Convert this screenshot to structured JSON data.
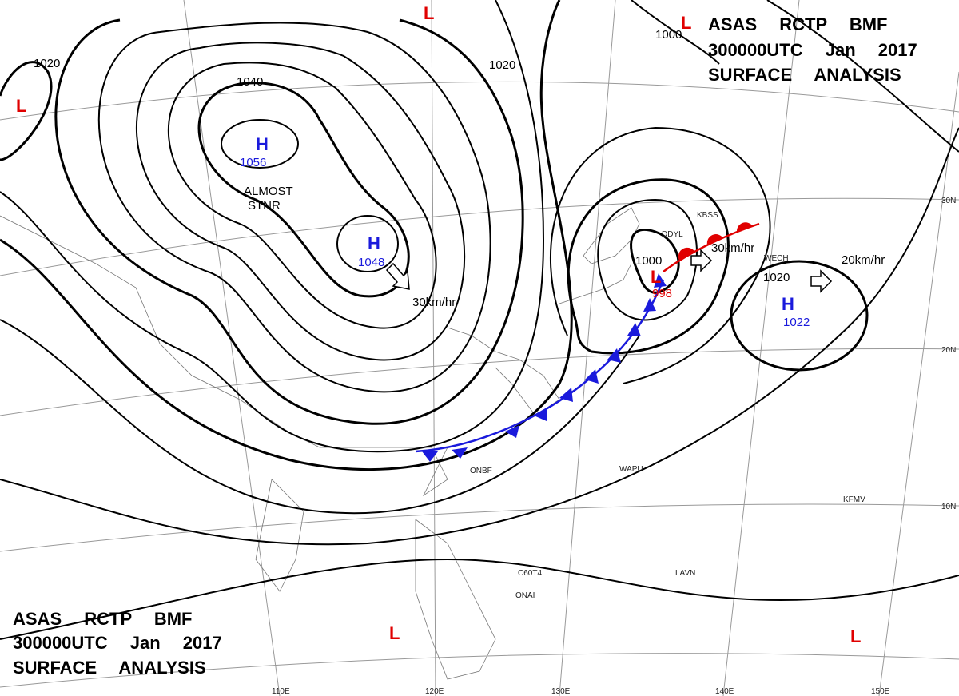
{
  "header": {
    "lines": [
      "ASAS RCTP BMF",
      "300000UTC Jan 2017",
      "SURFACE ANALYSIS"
    ]
  },
  "footer": {
    "lines": [
      "ASAS RCTP BMF",
      "300000UTC Jan 2017",
      "SURFACE ANALYSIS"
    ]
  },
  "highs": [
    {
      "label": "H",
      "value": "1056"
    },
    {
      "label": "H",
      "value": "1048"
    },
    {
      "label": "H",
      "value": "1022"
    }
  ],
  "lows": [
    {
      "label": "L"
    },
    {
      "label": "L"
    },
    {
      "label": "L"
    },
    {
      "label": "L",
      "value": "998"
    },
    {
      "label": "L"
    },
    {
      "label": "L"
    }
  ],
  "isobar_labels": [
    "1020",
    "1040",
    "1020",
    "1000",
    "1000",
    "1020"
  ],
  "motion_labels": [
    "30km/hr",
    "30km/hr",
    "20km/hr"
  ],
  "notes": [
    "ALMOST",
    "STNR"
  ],
  "latitude_labels": [
    "30N",
    "20N",
    "10N"
  ],
  "longitude_labels": [
    "110E",
    "120E",
    "130E",
    "140E",
    "150E"
  ],
  "station_ids": [
    "ONBF",
    "WAPU",
    "KFMV",
    "ONAI",
    "LAVN",
    "C60T4",
    "DDYL",
    "WECH",
    "KBSS"
  ]
}
